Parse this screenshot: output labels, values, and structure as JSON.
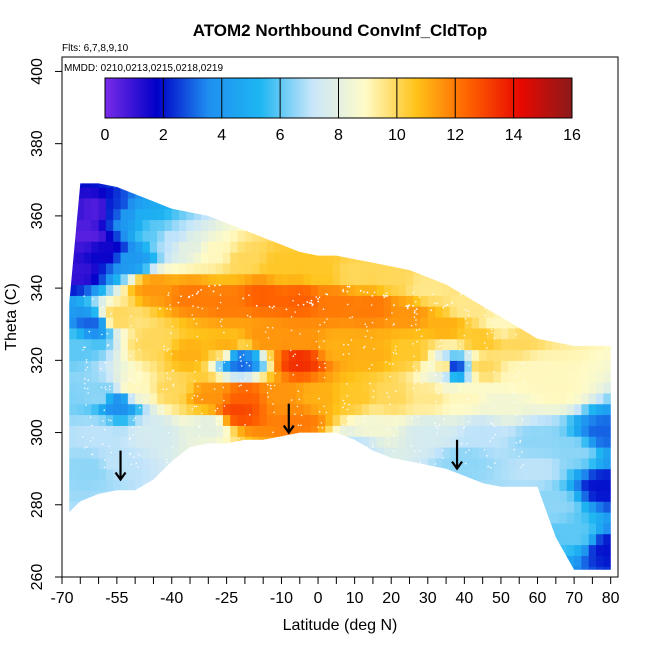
{
  "chart_data": {
    "type": "heatmap",
    "title": "ATOM2 Northbound ConvInf_CldTop",
    "annotations": {
      "flights": "Flts: 6,7,8,9,10",
      "dates": "MMDD: 0210,0213,0215,0218,0219"
    },
    "xlabel": "Latitude (deg N)",
    "ylabel": "Theta (C)",
    "xlim": [
      -70,
      82
    ],
    "ylim": [
      260,
      404
    ],
    "x_ticks": [
      -70,
      -55,
      -40,
      -25,
      -10,
      0,
      10,
      20,
      30,
      40,
      50,
      60,
      70,
      80
    ],
    "x_minor_ticks": [
      -65,
      -60,
      -50,
      -45,
      -35,
      -30,
      -20,
      -15,
      -5,
      5,
      15,
      25,
      35,
      45,
      55,
      65,
      75
    ],
    "y_ticks": [
      260,
      280,
      300,
      320,
      340,
      360,
      380,
      400
    ],
    "colorbar": {
      "min": 0,
      "max": 16,
      "ticks": [
        0,
        2,
        4,
        6,
        8,
        10,
        12,
        14,
        16
      ],
      "colors": [
        "#7a2be8",
        "#0000c8",
        "#1f8ff0",
        "#1eb6f2",
        "#c8e6fa",
        "#fffbc8",
        "#ffc218",
        "#ff6200",
        "#e80800",
        "#8b1a1a"
      ]
    },
    "arrows": [
      {
        "latitude": -54,
        "theta": 287
      },
      {
        "latitude": -8,
        "theta": 300
      },
      {
        "latitude": 38,
        "theta": 290
      }
    ],
    "coverage": {
      "latitude": [
        -68,
        -65,
        -60,
        -55,
        -50,
        -45,
        -40,
        -35,
        -30,
        -25,
        -20,
        -15,
        -10,
        -5,
        0,
        5,
        10,
        15,
        20,
        25,
        30,
        35,
        40,
        45,
        50,
        55,
        60,
        65,
        70,
        75,
        80
      ],
      "theta_top": [
        336,
        369,
        369,
        368,
        366,
        364,
        362,
        361,
        360,
        358,
        356,
        354,
        352,
        350,
        349,
        349,
        348,
        347,
        346,
        345,
        343,
        341,
        338,
        335,
        332,
        329,
        326,
        325,
        324,
        324,
        324
      ],
      "theta_bottom": [
        278,
        281,
        283,
        284,
        284,
        287,
        292,
        296,
        297,
        297,
        298,
        298,
        299,
        300,
        300,
        300,
        298,
        295,
        293,
        292,
        291,
        290,
        288,
        286,
        285,
        285,
        285,
        271,
        262,
        262,
        262
      ]
    },
    "field": [
      {
        "x": -63,
        "y": 355,
        "v": 0.5
      },
      {
        "x": -60,
        "y": 362,
        "v": 0.5
      },
      {
        "x": -66,
        "y": 345,
        "v": 1.0
      },
      {
        "x": -56,
        "y": 362,
        "v": 2.5
      },
      {
        "x": -52,
        "y": 360,
        "v": 4.0
      },
      {
        "x": -57,
        "y": 350,
        "v": 1.5
      },
      {
        "x": -48,
        "y": 360,
        "v": 5.0
      },
      {
        "x": -45,
        "y": 356,
        "v": 6.0
      },
      {
        "x": -52,
        "y": 348,
        "v": 4.0
      },
      {
        "x": -40,
        "y": 354,
        "v": 7.0
      },
      {
        "x": -35,
        "y": 352,
        "v": 8.0
      },
      {
        "x": -28,
        "y": 350,
        "v": 9.0
      },
      {
        "x": -20,
        "y": 348,
        "v": 10.0
      },
      {
        "x": -10,
        "y": 346,
        "v": 10.5
      },
      {
        "x": 0,
        "y": 345,
        "v": 10.5
      },
      {
        "x": 10,
        "y": 344,
        "v": 10.0
      },
      {
        "x": 20,
        "y": 343,
        "v": 10.0
      },
      {
        "x": 30,
        "y": 340,
        "v": 9.5
      },
      {
        "x": 40,
        "y": 335,
        "v": 9.5
      },
      {
        "x": 50,
        "y": 330,
        "v": 9.0
      },
      {
        "x": -45,
        "y": 340,
        "v": 11.5
      },
      {
        "x": -35,
        "y": 338,
        "v": 12.0
      },
      {
        "x": -25,
        "y": 336,
        "v": 12.0
      },
      {
        "x": -15,
        "y": 338,
        "v": 12.5
      },
      {
        "x": -5,
        "y": 337,
        "v": 12.5
      },
      {
        "x": 5,
        "y": 336,
        "v": 12.0
      },
      {
        "x": 15,
        "y": 335,
        "v": 12.0
      },
      {
        "x": 25,
        "y": 333,
        "v": 11.5
      },
      {
        "x": 35,
        "y": 330,
        "v": 11.0
      },
      {
        "x": 45,
        "y": 326,
        "v": 10.5
      },
      {
        "x": 55,
        "y": 325,
        "v": 10.0
      },
      {
        "x": 60,
        "y": 318,
        "v": 9.0
      },
      {
        "x": -55,
        "y": 332,
        "v": 10.0
      },
      {
        "x": -62,
        "y": 330,
        "v": 3.0
      },
      {
        "x": -66,
        "y": 325,
        "v": 6.0
      },
      {
        "x": -45,
        "y": 325,
        "v": 10.0
      },
      {
        "x": -35,
        "y": 322,
        "v": 11.0
      },
      {
        "x": -25,
        "y": 324,
        "v": 11.0
      },
      {
        "x": -15,
        "y": 326,
        "v": 11.5
      },
      {
        "x": -5,
        "y": 325,
        "v": 11.5
      },
      {
        "x": 5,
        "y": 324,
        "v": 11.0
      },
      {
        "x": 15,
        "y": 322,
        "v": 11.0
      },
      {
        "x": 25,
        "y": 322,
        "v": 10.5
      },
      {
        "x": 35,
        "y": 318,
        "v": 10.0
      },
      {
        "x": 45,
        "y": 318,
        "v": 10.0
      },
      {
        "x": 55,
        "y": 316,
        "v": 9.0
      },
      {
        "x": 65,
        "y": 312,
        "v": 9.0
      },
      {
        "x": -21,
        "y": 320,
        "v": 3.0
      },
      {
        "x": -5,
        "y": 320,
        "v": 13.5
      },
      {
        "x": 37,
        "y": 318,
        "v": 2.0
      },
      {
        "x": -30,
        "y": 310,
        "v": 11.5
      },
      {
        "x": -20,
        "y": 310,
        "v": 12.5
      },
      {
        "x": -10,
        "y": 310,
        "v": 11.5
      },
      {
        "x": 0,
        "y": 310,
        "v": 11.0
      },
      {
        "x": 10,
        "y": 310,
        "v": 10.5
      },
      {
        "x": 20,
        "y": 310,
        "v": 10.0
      },
      {
        "x": 30,
        "y": 310,
        "v": 9.5
      },
      {
        "x": 40,
        "y": 310,
        "v": 9.0
      },
      {
        "x": 50,
        "y": 308,
        "v": 8.5
      },
      {
        "x": -50,
        "y": 312,
        "v": 9.0
      },
      {
        "x": -40,
        "y": 312,
        "v": 10.0
      },
      {
        "x": -60,
        "y": 310,
        "v": 6.5
      },
      {
        "x": -55,
        "y": 308,
        "v": 3.5
      },
      {
        "x": -22,
        "y": 306,
        "v": 13.0
      },
      {
        "x": -5,
        "y": 303,
        "v": 12.0
      },
      {
        "x": -60,
        "y": 300,
        "v": 7.0
      },
      {
        "x": -45,
        "y": 300,
        "v": 7.5
      },
      {
        "x": -30,
        "y": 302,
        "v": 8.0
      },
      {
        "x": 15,
        "y": 302,
        "v": 8.5
      },
      {
        "x": 30,
        "y": 300,
        "v": 7.5
      },
      {
        "x": 45,
        "y": 300,
        "v": 7.0
      },
      {
        "x": 60,
        "y": 298,
        "v": 6.5
      },
      {
        "x": 70,
        "y": 295,
        "v": 6.5
      },
      {
        "x": 78,
        "y": 300,
        "v": 3.0
      },
      {
        "x": -62,
        "y": 290,
        "v": 6.5
      },
      {
        "x": -55,
        "y": 292,
        "v": 7.0
      },
      {
        "x": 10,
        "y": 296,
        "v": 7.0
      },
      {
        "x": 40,
        "y": 292,
        "v": 6.5
      },
      {
        "x": 60,
        "y": 290,
        "v": 7.0
      },
      {
        "x": 65,
        "y": 280,
        "v": 6.5
      },
      {
        "x": 70,
        "y": 272,
        "v": 6.0
      },
      {
        "x": 78,
        "y": 285,
        "v": 2.0
      },
      {
        "x": 80,
        "y": 268,
        "v": 2.0
      }
    ]
  }
}
